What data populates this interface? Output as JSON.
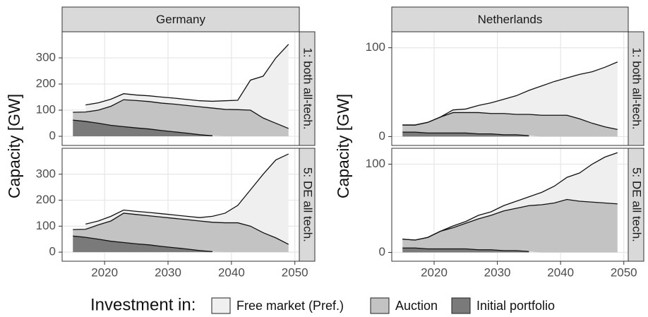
{
  "chart_data": [
    {
      "type": "area",
      "title": "Germany",
      "row_label": "1: both all-tech.",
      "ylabel": "Capacity [GW]",
      "x": [
        2015,
        2017,
        2019,
        2021,
        2023,
        2025,
        2027,
        2029,
        2031,
        2033,
        2035,
        2037,
        2039,
        2041,
        2043,
        2045,
        2047,
        2049
      ],
      "series": [
        {
          "name": "Initial portfolio",
          "color": "#7a7a7a",
          "values": [
            62,
            57,
            50,
            42,
            37,
            32,
            28,
            22,
            17,
            12,
            6,
            2,
            null,
            null,
            null,
            null,
            null,
            null
          ]
        },
        {
          "name": "Auction",
          "color": "#c3c3c3",
          "values": [
            30,
            36,
            50,
            73,
            103,
            105,
            105,
            105,
            106,
            106,
            107,
            106,
            103,
            102,
            100,
            70,
            50,
            30
          ]
        },
        {
          "name": "Free market (Pref.)",
          "color": "#efeff0",
          "values": [
            null,
            27,
            28,
            27,
            23,
            21,
            22,
            23,
            23,
            23,
            23,
            26,
            33,
            36,
            115,
            160,
            250,
            322
          ]
        }
      ],
      "xlim": [
        2013.3,
        2050.7
      ],
      "xticks": [
        2020,
        2030,
        2040,
        2050
      ],
      "ylim": [
        -35,
        400
      ],
      "yticks": [
        0,
        100,
        200,
        300
      ],
      "grid": true
    },
    {
      "type": "area",
      "title": "Netherlands",
      "row_label": "1: both all-tech.",
      "ylabel": "Capacity [GW]",
      "x": [
        2015,
        2017,
        2019,
        2021,
        2023,
        2025,
        2027,
        2029,
        2031,
        2033,
        2035,
        2037,
        2039,
        2041,
        2043,
        2045,
        2047,
        2049
      ],
      "series": [
        {
          "name": "Initial portfolio",
          "color": "#7a7a7a",
          "values": [
            5,
            5,
            4,
            4,
            4,
            4,
            3,
            3,
            2,
            2,
            1,
            null,
            null,
            null,
            null,
            null,
            null,
            null
          ]
        },
        {
          "name": "Auction",
          "color": "#c3c3c3",
          "values": [
            8,
            8,
            12,
            18,
            23,
            23,
            24,
            23,
            24,
            23,
            24,
            24,
            24,
            24,
            20,
            15,
            11,
            8
          ]
        },
        {
          "name": "Free market (Pref.)",
          "color": "#efeff0",
          "values": [
            0,
            0,
            0,
            0,
            3,
            4,
            8,
            12,
            16,
            21,
            27,
            33,
            38,
            42,
            50,
            58,
            67,
            76
          ]
        }
      ],
      "xlim": [
        2013.3,
        2050.7
      ],
      "xticks": [
        2020,
        2030,
        2040,
        2050
      ],
      "ylim": [
        -10,
        118
      ],
      "yticks": [
        0,
        100
      ],
      "grid": true
    },
    {
      "type": "area",
      "row_label": "5: DE all tech.",
      "x": [
        2015,
        2017,
        2019,
        2021,
        2023,
        2025,
        2027,
        2029,
        2031,
        2033,
        2035,
        2037,
        2039,
        2041,
        2043,
        2045,
        2047,
        2049
      ],
      "series": [
        {
          "name": "Initial portfolio",
          "color": "#7a7a7a",
          "values": [
            62,
            57,
            50,
            42,
            37,
            32,
            28,
            22,
            17,
            12,
            6,
            2,
            null,
            null,
            null,
            null,
            null,
            null
          ]
        },
        {
          "name": "Auction",
          "color": "#c3c3c3",
          "values": [
            25,
            31,
            55,
            78,
            113,
            113,
            112,
            113,
            113,
            113,
            114,
            113,
            113,
            113,
            100,
            75,
            55,
            30
          ]
        },
        {
          "name": "Free market (Pref.)",
          "color": "#efeff0",
          "values": [
            null,
            20,
            15,
            18,
            12,
            12,
            13,
            13,
            13,
            13,
            13,
            23,
            37,
            67,
            140,
            225,
            300,
            348
          ]
        }
      ],
      "xlim": [
        2013.3,
        2050.7
      ],
      "xticks": [
        2020,
        2030,
        2040,
        2050
      ],
      "ylim": [
        -35,
        400
      ],
      "yticks": [
        0,
        100,
        200,
        300
      ],
      "grid": true
    },
    {
      "type": "area",
      "row_label": "5: DE all tech.",
      "x": [
        2015,
        2017,
        2019,
        2021,
        2023,
        2025,
        2027,
        2029,
        2031,
        2033,
        2035,
        2037,
        2039,
        2041,
        2043,
        2045,
        2047,
        2049
      ],
      "series": [
        {
          "name": "Initial portfolio",
          "color": "#7a7a7a",
          "values": [
            5,
            5,
            4,
            4,
            4,
            4,
            3,
            3,
            2,
            2,
            1,
            null,
            null,
            null,
            null,
            null,
            null,
            null
          ]
        },
        {
          "name": "Auction",
          "color": "#c3c3c3",
          "values": [
            10,
            9,
            13,
            20,
            24,
            29,
            35,
            39,
            45,
            48,
            52,
            54,
            56,
            60,
            58,
            57,
            56,
            55
          ]
        },
        {
          "name": "Free market (Pref.)",
          "color": "#efeff0",
          "values": [
            0,
            0,
            0,
            0,
            2,
            2,
            4,
            4,
            6,
            8,
            10,
            14,
            19,
            25,
            32,
            43,
            52,
            58
          ]
        }
      ],
      "xlim": [
        2013.3,
        2050.7
      ],
      "xticks": [
        2020,
        2030,
        2040,
        2050
      ],
      "ylim": [
        -10,
        118
      ],
      "yticks": [
        0,
        100
      ],
      "grid": true
    }
  ],
  "legend": {
    "title": "Investment in:"
  }
}
